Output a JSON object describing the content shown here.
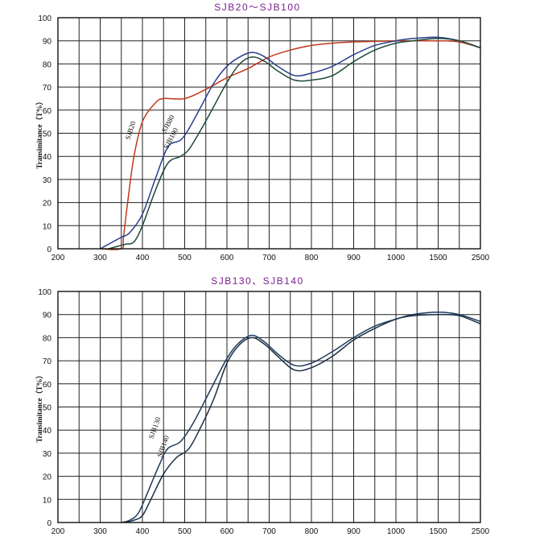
{
  "chart_data": [
    {
      "type": "line",
      "title": "SJB20～SJB100",
      "ylabel": "Transimitance（T%）",
      "xlabel": "",
      "x_ticks": [
        "200",
        "300",
        "400",
        "500",
        "600",
        "700",
        "800",
        "900",
        "1000",
        "1500",
        "2500"
      ],
      "y_ticks": [
        "0",
        "10",
        "20",
        "30",
        "40",
        "50",
        "60",
        "70",
        "80",
        "90",
        "100"
      ],
      "ylim": [
        0,
        100
      ],
      "grid": true,
      "series": [
        {
          "name": "SJB20",
          "color": "#c0391b",
          "points": [
            [
              300,
              0
            ],
            [
              350,
              0
            ],
            [
              355,
              5
            ],
            [
              365,
              20
            ],
            [
              380,
              40
            ],
            [
              400,
              55
            ],
            [
              430,
              63
            ],
            [
              450,
              65
            ],
            [
              500,
              65
            ],
            [
              550,
              69
            ],
            [
              600,
              74
            ],
            [
              650,
              78
            ],
            [
              700,
              83
            ],
            [
              750,
              86
            ],
            [
              800,
              88
            ],
            [
              850,
              89
            ],
            [
              900,
              89.5
            ],
            [
              1000,
              90
            ],
            [
              1200,
              90
            ],
            [
              1500,
              90
            ],
            [
              2000,
              89.5
            ],
            [
              2500,
              87
            ]
          ]
        },
        {
          "name": "SJB80",
          "color": "#2a3f8f",
          "points": [
            [
              300,
              0
            ],
            [
              330,
              3
            ],
            [
              350,
              5
            ],
            [
              370,
              7
            ],
            [
              400,
              15
            ],
            [
              430,
              30
            ],
            [
              460,
              44
            ],
            [
              490,
              47
            ],
            [
              510,
              52
            ],
            [
              540,
              62
            ],
            [
              570,
              72
            ],
            [
              600,
              79
            ],
            [
              630,
              83
            ],
            [
              660,
              85
            ],
            [
              690,
              83
            ],
            [
              720,
              79
            ],
            [
              760,
              75
            ],
            [
              800,
              76
            ],
            [
              850,
              79
            ],
            [
              900,
              84
            ],
            [
              950,
              88
            ],
            [
              1000,
              90
            ],
            [
              1200,
              91
            ],
            [
              1500,
              91.5
            ],
            [
              2000,
              90
            ],
            [
              2500,
              87
            ]
          ]
        },
        {
          "name": "SJB100",
          "color": "#1e4a3a",
          "points": [
            [
              320,
              0
            ],
            [
              340,
              1
            ],
            [
              360,
              2
            ],
            [
              380,
              3
            ],
            [
              400,
              10
            ],
            [
              430,
              25
            ],
            [
              460,
              37
            ],
            [
              490,
              40
            ],
            [
              510,
              43
            ],
            [
              540,
              52
            ],
            [
              570,
              62
            ],
            [
              600,
              72
            ],
            [
              630,
              80
            ],
            [
              660,
              83
            ],
            [
              690,
              81
            ],
            [
              720,
              77
            ],
            [
              760,
              73
            ],
            [
              800,
              73
            ],
            [
              850,
              75
            ],
            [
              900,
              81
            ],
            [
              950,
              86
            ],
            [
              1000,
              89
            ],
            [
              1200,
              90
            ],
            [
              1500,
              91
            ],
            [
              2000,
              90
            ],
            [
              2500,
              87
            ]
          ]
        }
      ],
      "annotations": [
        "SJB20",
        "SJB80",
        "SJB100"
      ]
    },
    {
      "type": "line",
      "title": "SJB130、SJB140",
      "ylabel": "Transimitance（T%）",
      "xlabel": "",
      "x_ticks": [
        "200",
        "300",
        "400",
        "500",
        "600",
        "700",
        "800",
        "900",
        "1000",
        "1500",
        "2500"
      ],
      "y_ticks": [
        "0",
        "10",
        "20",
        "30",
        "40",
        "50",
        "60",
        "70",
        "80",
        "90",
        "100"
      ],
      "ylim": [
        0,
        100
      ],
      "grid": true,
      "series": [
        {
          "name": "SJB130",
          "color": "#1e3a5a",
          "points": [
            [
              350,
              0
            ],
            [
              370,
              1
            ],
            [
              390,
              4
            ],
            [
              410,
              12
            ],
            [
              440,
              25
            ],
            [
              460,
              32
            ],
            [
              490,
              35
            ],
            [
              520,
              43
            ],
            [
              560,
              57
            ],
            [
              600,
              71
            ],
            [
              630,
              78
            ],
            [
              660,
              81
            ],
            [
              690,
              78
            ],
            [
              720,
              73
            ],
            [
              760,
              68
            ],
            [
              800,
              69
            ],
            [
              850,
              74
            ],
            [
              900,
              80
            ],
            [
              950,
              85
            ],
            [
              1000,
              88
            ],
            [
              1200,
              90
            ],
            [
              1500,
              91
            ],
            [
              2000,
              90
            ],
            [
              2500,
              87
            ]
          ]
        },
        {
          "name": "SJB140",
          "color": "#1a2f45",
          "points": [
            [
              360,
              0
            ],
            [
              380,
              1
            ],
            [
              400,
              3
            ],
            [
              420,
              10
            ],
            [
              450,
              21
            ],
            [
              480,
              28
            ],
            [
              510,
              32
            ],
            [
              540,
              42
            ],
            [
              570,
              54
            ],
            [
              600,
              69
            ],
            [
              630,
              77
            ],
            [
              660,
              80
            ],
            [
              690,
              77
            ],
            [
              720,
              72
            ],
            [
              760,
              66
            ],
            [
              800,
              67
            ],
            [
              850,
              72
            ],
            [
              900,
              79
            ],
            [
              950,
              84
            ],
            [
              1000,
              88
            ],
            [
              1200,
              89.5
            ],
            [
              1500,
              90
            ],
            [
              2000,
              89.5
            ],
            [
              2500,
              86
            ]
          ]
        }
      ],
      "annotations": [
        "SJB130",
        "SJB140"
      ]
    }
  ]
}
